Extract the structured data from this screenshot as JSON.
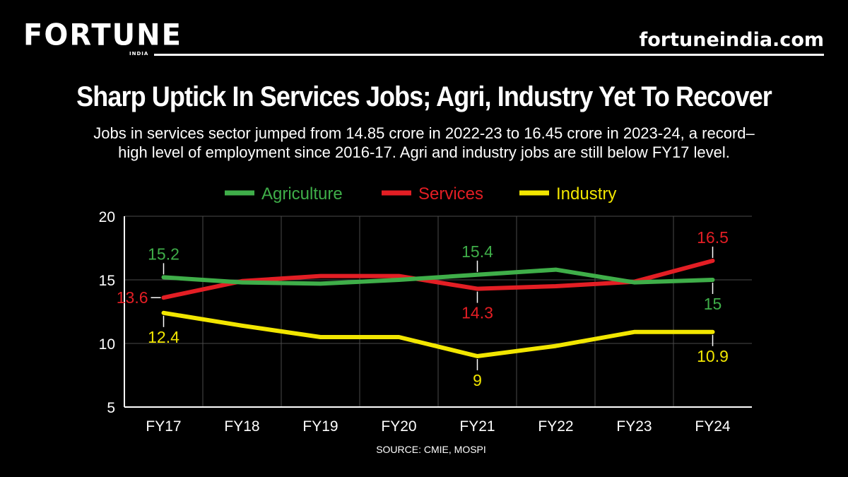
{
  "brand": {
    "logo": "FORTUNE",
    "logo_sub": "INDIA",
    "site": "fortuneindia.com"
  },
  "title": "Sharp Uptick In Services Jobs; Agri, Industry Yet To Recover",
  "subtitle_line1": "Jobs in services sector jumped from 14.85 crore in 2022-23 to 16.45 crore in 2023-24, a record–",
  "subtitle_line2": "high level of employment since 2016-17. Agri and industry jobs are still below FY17 level.",
  "source": "SOURCE: CMIE, MOSPI",
  "chart_data": {
    "type": "line",
    "categories": [
      "FY17",
      "FY18",
      "FY19",
      "FY20",
      "FY21",
      "FY22",
      "FY23",
      "FY24"
    ],
    "ylim": [
      5,
      20
    ],
    "yticks": [
      5,
      10,
      15,
      20
    ],
    "grid": true,
    "legend_position": "top-center",
    "series": [
      {
        "name": "Agriculture",
        "color": "#3fae49",
        "values": [
          15.2,
          14.8,
          14.7,
          15.0,
          15.4,
          15.8,
          14.8,
          15.0
        ],
        "labels": {
          "0": "15.2",
          "4": "15.4",
          "7": "15"
        }
      },
      {
        "name": "Services",
        "color": "#e31e24",
        "values": [
          13.6,
          14.9,
          15.3,
          15.3,
          14.3,
          14.5,
          14.85,
          16.5
        ],
        "labels": {
          "0": "13.6",
          "4": "14.3",
          "7": "16.5"
        }
      },
      {
        "name": "Industry",
        "color": "#f2e600",
        "values": [
          12.4,
          11.4,
          10.5,
          10.5,
          9.0,
          9.8,
          10.9,
          10.9
        ],
        "labels": {
          "0": "12.4",
          "4": "9",
          "7": "10.9"
        }
      }
    ]
  }
}
